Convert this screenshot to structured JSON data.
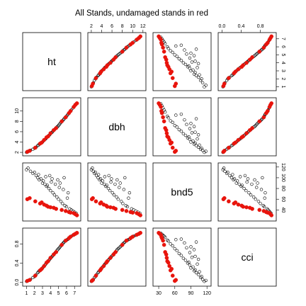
{
  "chart_data": {
    "type": "scatter",
    "title": "All Stands, undamaged stands in red",
    "variables": [
      "ht",
      "dbh",
      "bnd5",
      "cci"
    ],
    "ranges": {
      "ht": [
        0.7,
        7.6
      ],
      "dbh": [
        1.6,
        12.3
      ],
      "bnd5": [
        22,
        125
      ],
      "cci": [
        -0.05,
        1.1
      ]
    },
    "axis_ticks": {
      "top": {
        "var": "dbh",
        "labels": [
          "2",
          "4",
          "6",
          "8",
          "10",
          "12"
        ],
        "values": [
          2,
          4,
          6,
          8,
          10,
          12
        ]
      },
      "top2": {
        "var": "cci",
        "labels": [
          "0.0",
          "0.4",
          "0.8"
        ],
        "values": [
          0,
          0.4,
          0.8
        ]
      },
      "right": {
        "var": "ht",
        "labels": [
          "1",
          "2",
          "3",
          "4",
          "5",
          "6",
          "7"
        ],
        "values": [
          1,
          2,
          3,
          4,
          5,
          6,
          7
        ]
      },
      "right2": {
        "var": "bnd5",
        "labels": [
          "40",
          "60",
          "80",
          "100",
          "120"
        ],
        "values": [
          40,
          60,
          80,
          100,
          120
        ]
      },
      "left": {
        "var": "dbh",
        "labels": [
          "2",
          "4",
          "6",
          "8",
          "10"
        ],
        "values": [
          2,
          4,
          6,
          8,
          10
        ]
      },
      "left2": {
        "var": "cci",
        "labels": [
          "0.0",
          "0.4",
          "0.8"
        ],
        "values": [
          0,
          0.4,
          0.8
        ]
      },
      "bottom": {
        "var": "ht",
        "labels": [
          "1",
          "2",
          "3",
          "4",
          "5",
          "6",
          "7"
        ],
        "values": [
          1,
          2,
          3,
          4,
          5,
          6,
          7
        ]
      },
      "bottom2": {
        "var": "bnd5",
        "labels": [
          "30",
          "60",
          "90",
          "120"
        ],
        "values": [
          30,
          60,
          90,
          120
        ]
      }
    },
    "series": [
      {
        "color": "#000000",
        "marker": "open-circle",
        "points": [
          [
            1.0,
            2.0,
            115,
            0.02
          ],
          [
            1.2,
            2.2,
            118,
            0.04
          ],
          [
            1.5,
            2.4,
            112,
            0.06
          ],
          [
            1.8,
            2.6,
            108,
            0.1
          ],
          [
            2.0,
            2.8,
            110,
            0.12
          ],
          [
            2.2,
            3.0,
            104,
            0.16
          ],
          [
            2.4,
            3.3,
            100,
            0.2
          ],
          [
            2.6,
            3.6,
            96,
            0.24
          ],
          [
            2.8,
            3.8,
            98,
            0.26
          ],
          [
            3.0,
            4.0,
            90,
            0.3
          ],
          [
            3.1,
            4.2,
            94,
            0.32
          ],
          [
            3.3,
            4.5,
            88,
            0.36
          ],
          [
            3.5,
            4.8,
            84,
            0.4
          ],
          [
            3.6,
            5.0,
            86,
            0.42
          ],
          [
            3.8,
            5.3,
            80,
            0.46
          ],
          [
            4.0,
            5.6,
            76,
            0.5
          ],
          [
            4.1,
            5.8,
            92,
            0.52
          ],
          [
            4.3,
            6.1,
            72,
            0.56
          ],
          [
            4.5,
            6.4,
            68,
            0.6
          ],
          [
            4.6,
            6.6,
            88,
            0.62
          ],
          [
            4.8,
            6.9,
            64,
            0.66
          ],
          [
            5.0,
            7.2,
            60,
            0.7
          ],
          [
            5.1,
            7.4,
            82,
            0.72
          ],
          [
            5.3,
            7.8,
            56,
            0.76
          ],
          [
            5.5,
            8.1,
            52,
            0.8
          ],
          [
            5.6,
            8.3,
            78,
            0.82
          ],
          [
            5.8,
            8.7,
            48,
            0.86
          ],
          [
            6.0,
            9.0,
            46,
            0.88
          ],
          [
            6.2,
            9.4,
            72,
            0.9
          ],
          [
            6.4,
            9.8,
            42,
            0.94
          ],
          [
            6.6,
            10.2,
            40,
            0.96
          ],
          [
            6.8,
            10.6,
            38,
            0.98
          ],
          [
            7.0,
            11.0,
            36,
            1.0
          ],
          [
            7.2,
            11.4,
            34,
            1.02
          ],
          [
            3.4,
            4.6,
            102,
            0.38
          ],
          [
            4.2,
            5.9,
            98,
            0.54
          ],
          [
            5.2,
            7.6,
            90,
            0.74
          ],
          [
            2.5,
            3.4,
            106,
            0.22
          ],
          [
            6.1,
            9.2,
            62,
            0.89
          ],
          [
            4.9,
            7.0,
            96,
            0.68
          ],
          [
            3.9,
            5.4,
            104,
            0.48
          ],
          [
            5.7,
            8.5,
            100,
            0.84
          ]
        ]
      },
      {
        "color": "#e8140c",
        "marker": "filled-circle",
        "points": [
          [
            1.1,
            2.1,
            60,
            0.03
          ],
          [
            1.4,
            2.3,
            62,
            0.05
          ],
          [
            2.1,
            2.9,
            56,
            0.14
          ],
          [
            2.7,
            3.7,
            52,
            0.25
          ],
          [
            3.2,
            4.4,
            50,
            0.34
          ],
          [
            3.7,
            5.1,
            46,
            0.44
          ],
          [
            4.4,
            6.3,
            44,
            0.58
          ],
          [
            4.7,
            6.7,
            42,
            0.63
          ],
          [
            5.4,
            8.0,
            40,
            0.78
          ],
          [
            6.3,
            9.6,
            36,
            0.92
          ],
          [
            6.9,
            10.8,
            34,
            0.99
          ],
          [
            7.1,
            11.2,
            32,
            1.01
          ],
          [
            7.3,
            11.5,
            30,
            1.03
          ],
          [
            5.9,
            8.8,
            38,
            0.87
          ],
          [
            4.0,
            5.7,
            45,
            0.51
          ],
          [
            2.9,
            3.9,
            54,
            0.28
          ],
          [
            6.5,
            10.0,
            35,
            0.95
          ],
          [
            3.5,
            4.9,
            48,
            0.41
          ]
        ]
      }
    ]
  }
}
